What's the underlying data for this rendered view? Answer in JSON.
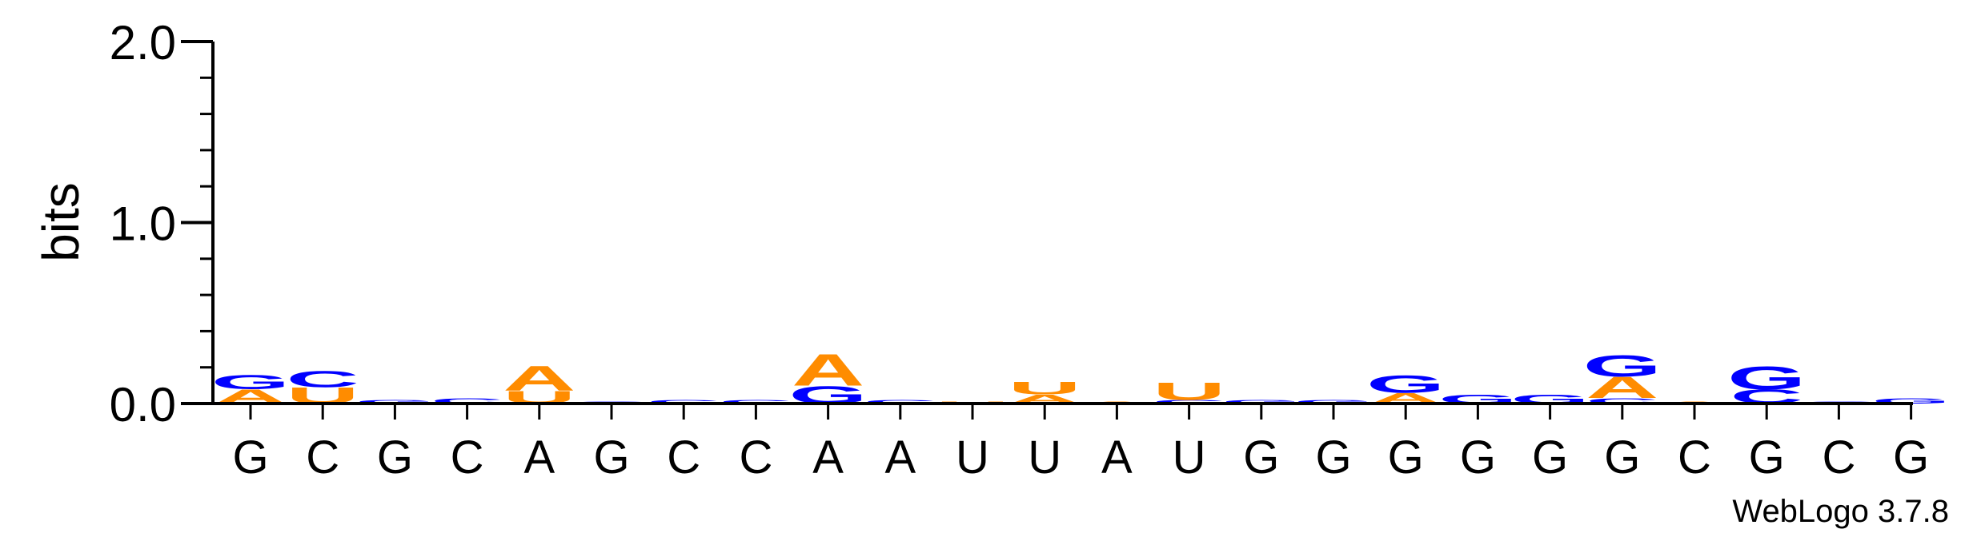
{
  "chart_data": {
    "type": "sequence-logo",
    "ylabel": "bits",
    "ylim": [
      0,
      2.0
    ],
    "yticks": [
      "0.0",
      "1.0",
      "2.0"
    ],
    "positions": [
      "G",
      "C",
      "G",
      "C",
      "A",
      "G",
      "C",
      "C",
      "A",
      "A",
      "U",
      "U",
      "A",
      "U",
      "G",
      "G",
      "G",
      "G",
      "G",
      "G",
      "C",
      "G",
      "C",
      "G"
    ],
    "colors": {
      "A": "#FF8C00",
      "U": "#FF8C00",
      "G": "#0000FF",
      "C": "#0000FF"
    },
    "stacks": [
      [
        {
          "base": "A",
          "bits": 0.08
        },
        {
          "base": "G",
          "bits": 0.08
        }
      ],
      [
        {
          "base": "U",
          "bits": 0.09
        },
        {
          "base": "C",
          "bits": 0.09
        }
      ],
      [
        {
          "base": "G",
          "bits": 0.02
        }
      ],
      [
        {
          "base": "C",
          "bits": 0.03
        }
      ],
      [
        {
          "base": "U",
          "bits": 0.07
        },
        {
          "base": "A",
          "bits": 0.14
        }
      ],
      [
        {
          "base": "G",
          "bits": 0.01
        }
      ],
      [
        {
          "base": "C",
          "bits": 0.02
        }
      ],
      [
        {
          "base": "C",
          "bits": 0.02
        }
      ],
      [
        {
          "base": "G",
          "bits": 0.1
        },
        {
          "base": "A",
          "bits": 0.18
        }
      ],
      [
        {
          "base": "C",
          "bits": 0.02
        }
      ],
      [
        {
          "base": "U",
          "bits": 0.01
        }
      ],
      [
        {
          "base": "A",
          "bits": 0.05
        },
        {
          "base": "U",
          "bits": 0.07
        }
      ],
      [
        {
          "base": "A",
          "bits": 0.01
        }
      ],
      [
        {
          "base": "C",
          "bits": 0.02
        },
        {
          "base": "U",
          "bits": 0.1
        }
      ],
      [
        {
          "base": "G",
          "bits": 0.02
        }
      ],
      [
        {
          "base": "G",
          "bits": 0.02
        }
      ],
      [
        {
          "base": "A",
          "bits": 0.06
        },
        {
          "base": "G",
          "bits": 0.1
        }
      ],
      [
        {
          "base": "G",
          "bits": 0.05
        }
      ],
      [
        {
          "base": "G",
          "bits": 0.05
        }
      ],
      [
        {
          "base": "C",
          "bits": 0.03
        },
        {
          "base": "A",
          "bits": 0.12
        },
        {
          "base": "G",
          "bits": 0.12
        }
      ],
      [
        {
          "base": "A",
          "bits": 0.01
        }
      ],
      [
        {
          "base": "C",
          "bits": 0.08
        },
        {
          "base": "G",
          "bits": 0.13
        }
      ],
      [
        {
          "base": "C",
          "bits": 0.01
        }
      ],
      [
        {
          "base": "G",
          "bits": 0.03
        }
      ]
    ]
  },
  "footer": {
    "credit": "WebLogo 3.7.8"
  }
}
